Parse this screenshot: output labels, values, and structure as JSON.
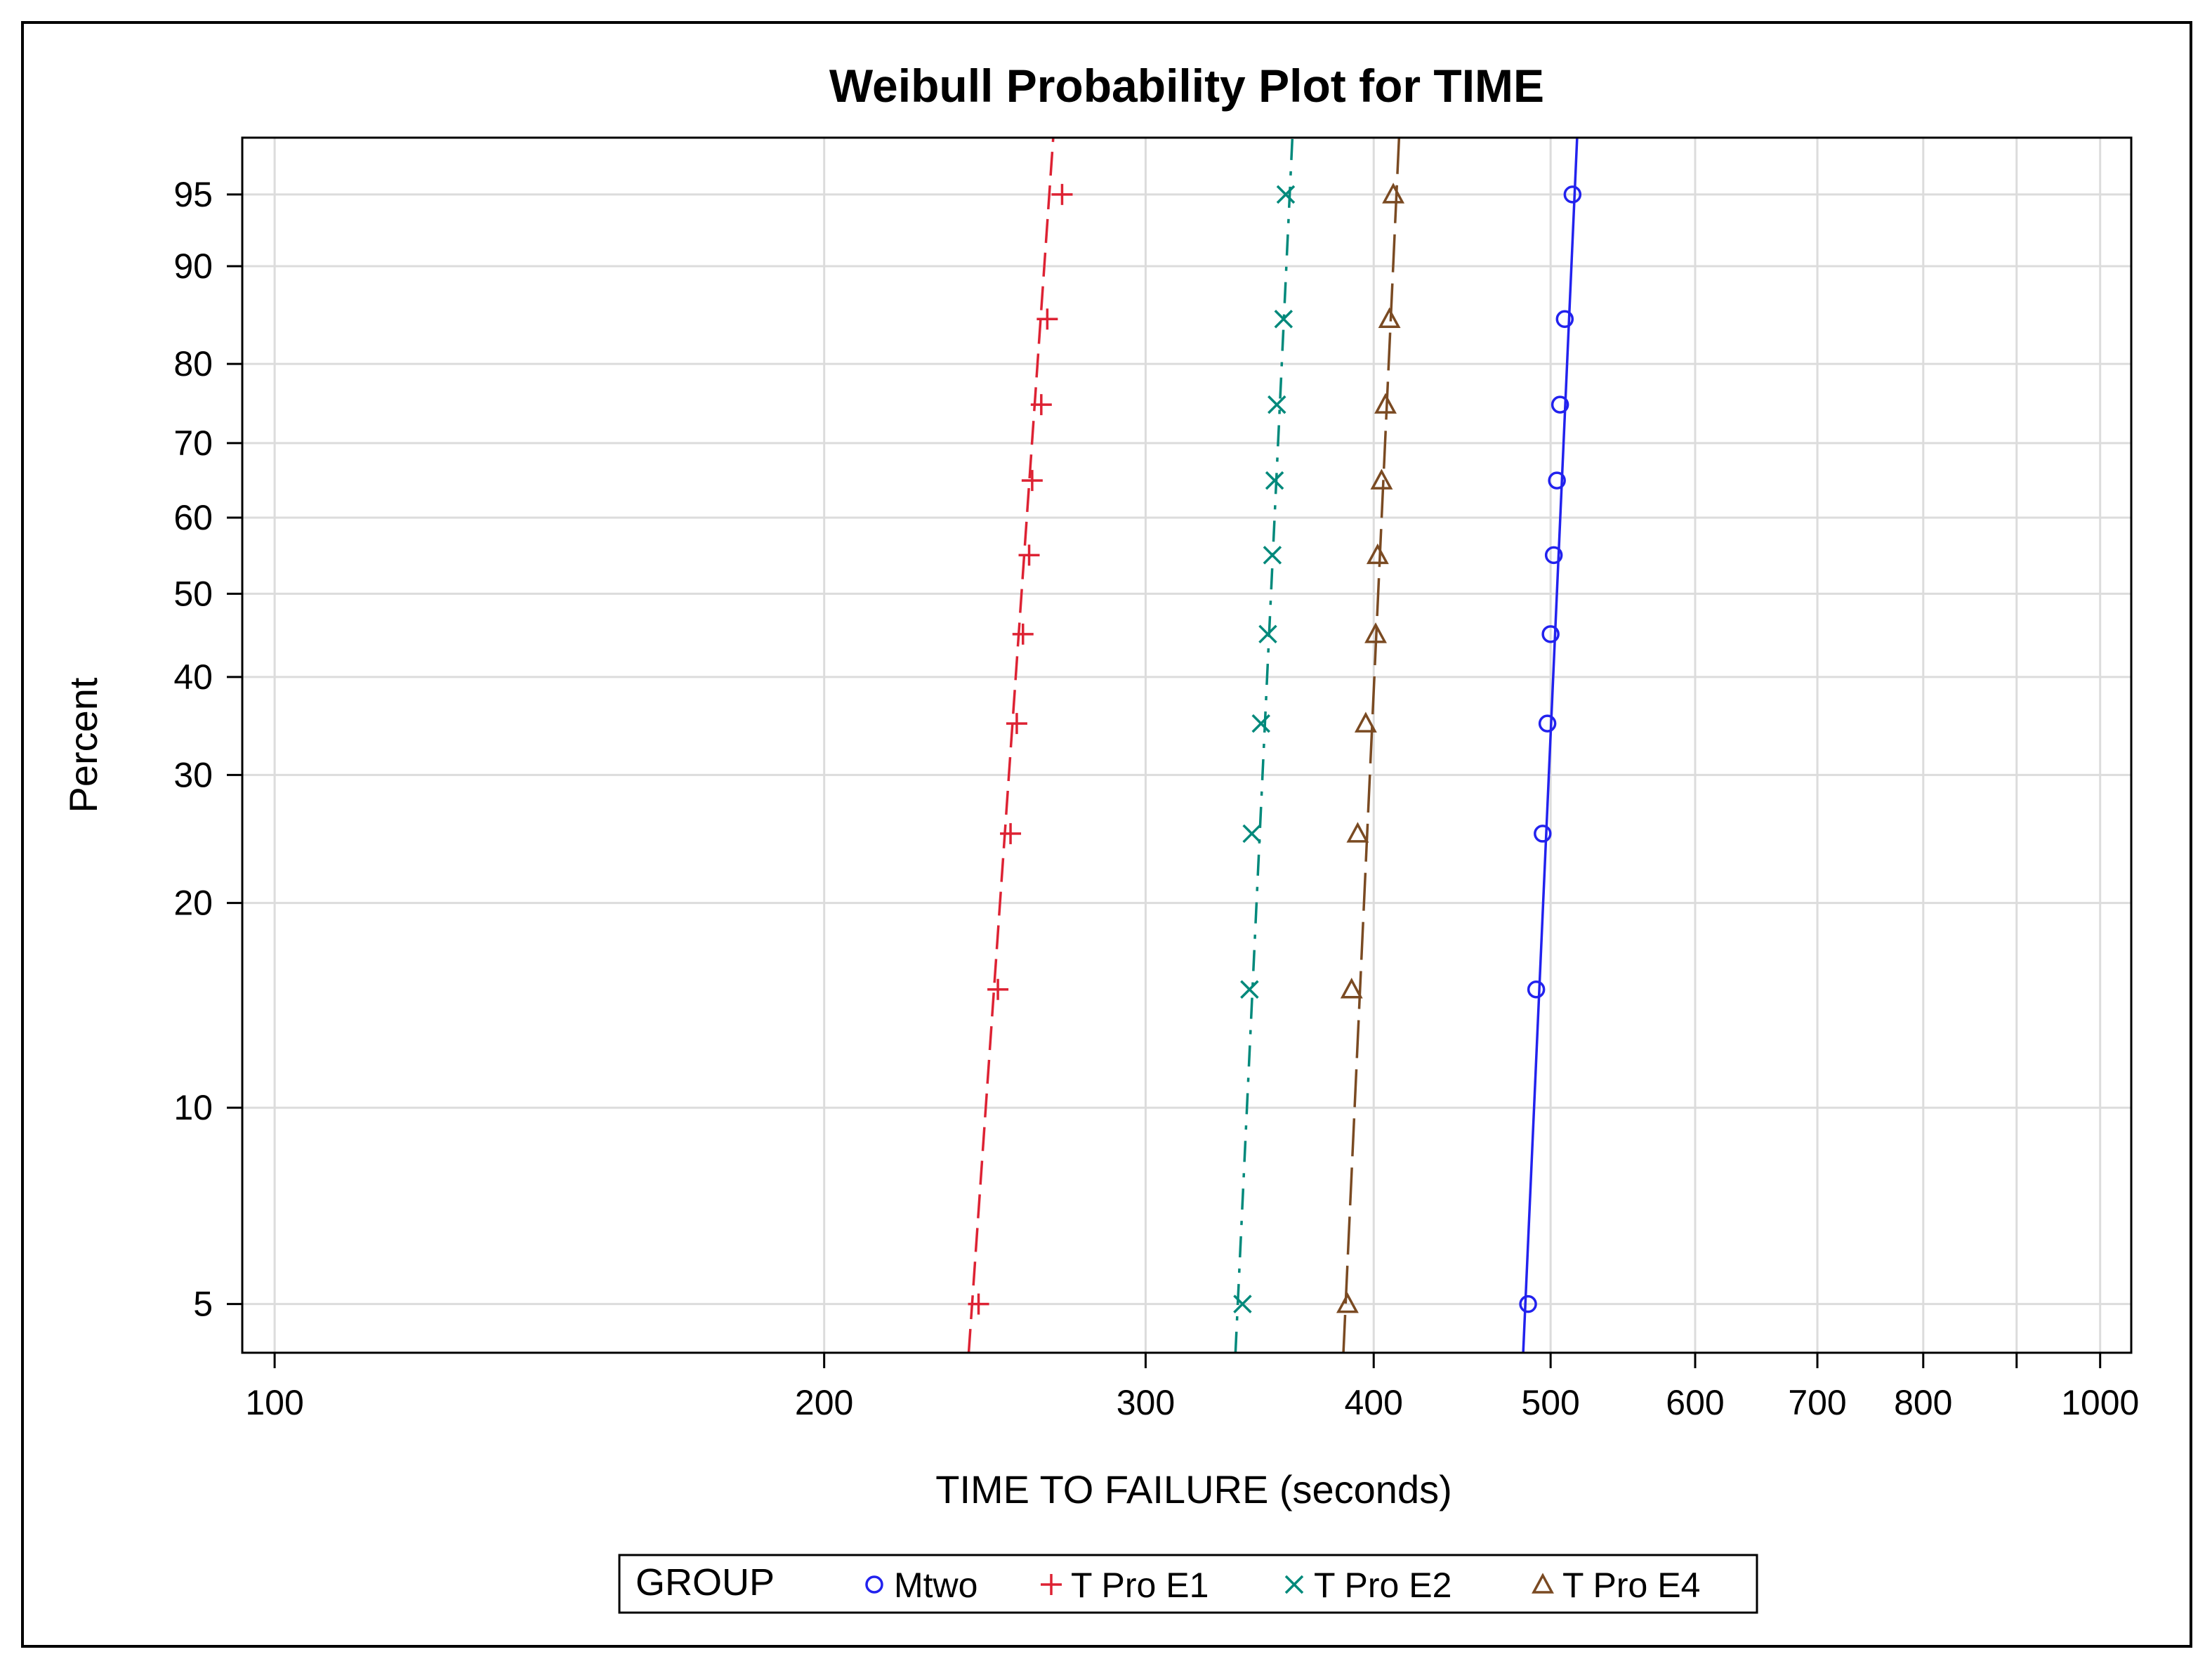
{
  "chart_data": {
    "type": "scatter",
    "title": "Weibull Probability Plot for TIME",
    "xlabel": "TIME TO FAILURE (seconds)",
    "ylabel": "Percent",
    "x_scale": "log",
    "y_scale": "weibull",
    "xlim": [
      96,
      1040
    ],
    "ylim": [
      4.2,
      97.5
    ],
    "x_ticks": [
      100,
      200,
      300,
      400,
      500,
      600,
      700,
      800,
      1000
    ],
    "x_tick_labels": [
      "100",
      "200",
      "300",
      "400",
      "500",
      "600",
      "700",
      "800",
      "1000"
    ],
    "x_minor_ticks": [
      900
    ],
    "y_ticks": [
      5,
      10,
      20,
      30,
      40,
      50,
      60,
      70,
      80,
      90,
      95
    ],
    "y_tick_labels": [
      "5",
      "10",
      "20",
      "30",
      "40",
      "50",
      "60",
      "70",
      "80",
      "90",
      "95"
    ],
    "grid": true,
    "legend": {
      "title": "GROUP",
      "placement": "bottom-center"
    },
    "series": [
      {
        "name": "Mtwo",
        "marker": "circle",
        "color": "#2222ee",
        "line_style": "solid",
        "percent": [
          5,
          15,
          25,
          35,
          45,
          55,
          65,
          75,
          85,
          95
        ],
        "x": [
          486,
          491,
          495,
          498,
          500,
          502,
          504,
          506,
          509,
          514
        ],
        "fit_line": [
          [
            483,
            4.2
          ],
          [
            517,
            97.5
          ]
        ]
      },
      {
        "name": "T Pro E1",
        "marker": "plus",
        "color": "#dd2233",
        "line_style": "dashed",
        "percent": [
          5,
          15,
          25,
          35,
          45,
          55,
          65,
          75,
          85,
          95
        ],
        "x": [
          243,
          249,
          253,
          255,
          257,
          259,
          260,
          263,
          265,
          270
        ],
        "fit_line": [
          [
            240,
            4.2
          ],
          [
            267,
            97.5
          ]
        ]
      },
      {
        "name": "T Pro E2",
        "marker": "x",
        "color": "#00897b",
        "line_style": "dash-dot",
        "percent": [
          5,
          15,
          25,
          35,
          45,
          55,
          65,
          75,
          85,
          95
        ],
        "x": [
          339,
          342,
          343,
          347,
          350,
          352,
          353,
          354,
          357,
          358
        ],
        "fit_line": [
          [
            336,
            4.2
          ],
          [
            361,
            97.5
          ]
        ]
      },
      {
        "name": "T Pro E4",
        "marker": "triangle",
        "color": "#7a4a22",
        "line_style": "long-dash",
        "percent": [
          5,
          15,
          25,
          35,
          45,
          55,
          65,
          75,
          85,
          95
        ],
        "x": [
          387,
          389,
          392,
          396,
          401,
          402,
          404,
          406,
          408,
          410
        ],
        "fit_line": [
          [
            385,
            4.2
          ],
          [
            413,
            97.5
          ]
        ]
      }
    ]
  }
}
